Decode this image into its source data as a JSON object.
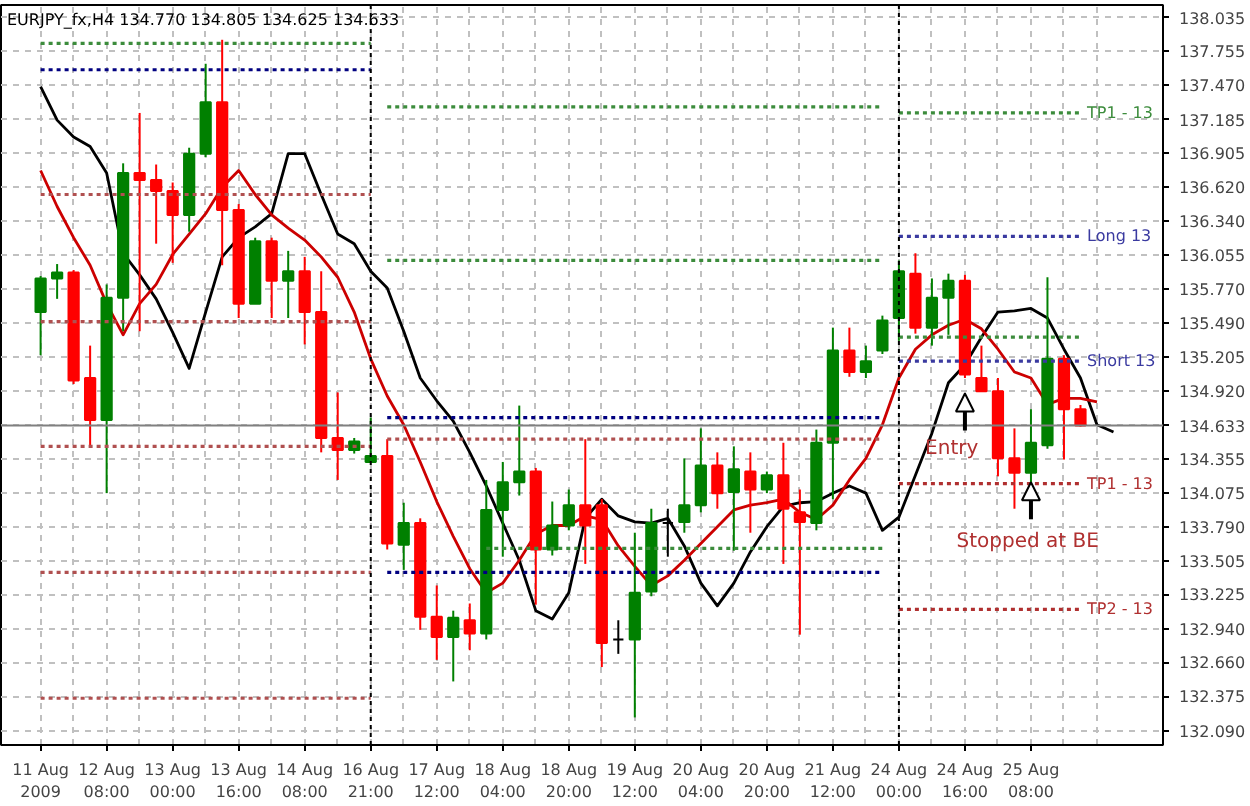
{
  "chart_data": {
    "type": "candlestick",
    "title": "EURJPY_fx,H4 134.770 134.805 134.625 134.633",
    "categories": [
      "11 Aug 2009",
      null,
      null,
      null,
      "12 Aug 08:00",
      null,
      null,
      null,
      "13 Aug 00:00",
      null,
      null,
      null,
      "13 Aug 16:00",
      null,
      null,
      null,
      "14 Aug 08:00",
      null,
      null,
      null,
      "16 Aug 21:00",
      null,
      null,
      null,
      "17 Aug 12:00",
      null,
      null,
      null,
      "18 Aug 04:00",
      null,
      null,
      null,
      "18 Aug 20:00",
      null,
      null,
      null,
      "19 Aug 12:00",
      null,
      null,
      null,
      "20 Aug 04:00",
      null,
      null,
      null,
      "20 Aug 20:00",
      null,
      null,
      null,
      "21 Aug 12:00",
      null,
      null,
      null,
      "24 Aug 00:00",
      null,
      null,
      null,
      "24 Aug 16:00",
      null,
      null,
      null,
      "25 Aug 08:00",
      null,
      null,
      null,
      null,
      null
    ],
    "ohlc": [
      [
        135.58,
        135.88,
        135.22,
        135.86
      ],
      [
        135.86,
        135.98,
        135.69,
        135.91
      ],
      [
        135.91,
        135.93,
        134.98,
        135.01
      ],
      [
        135.03,
        135.3,
        134.46,
        134.68
      ],
      [
        134.68,
        135.81,
        134.07,
        135.7
      ],
      [
        135.7,
        136.82,
        135.42,
        136.74
      ],
      [
        136.74,
        137.24,
        135.42,
        136.68
      ],
      [
        136.68,
        136.81,
        136.15,
        136.59
      ],
      [
        136.59,
        136.66,
        135.99,
        136.39
      ],
      [
        136.39,
        136.95,
        136.25,
        136.9
      ],
      [
        136.9,
        137.65,
        136.87,
        137.33
      ],
      [
        137.33,
        137.85,
        135.97,
        136.43
      ],
      [
        136.43,
        136.48,
        135.53,
        135.65
      ],
      [
        135.65,
        136.2,
        135.65,
        136.17
      ],
      [
        136.17,
        136.2,
        135.53,
        135.84
      ],
      [
        135.84,
        136.09,
        135.53,
        135.92
      ],
      [
        135.92,
        136.04,
        135.31,
        135.58
      ],
      [
        135.58,
        135.92,
        134.41,
        134.53
      ],
      [
        134.53,
        134.91,
        134.18,
        134.43
      ],
      [
        134.43,
        134.53,
        134.4,
        134.5
      ],
      [
        134.33,
        134.7,
        134.33,
        134.38
      ],
      [
        134.38,
        134.52,
        133.6,
        133.65
      ],
      [
        133.64,
        133.99,
        133.43,
        133.82
      ],
      [
        133.82,
        133.86,
        132.93,
        133.04
      ],
      [
        133.04,
        133.3,
        132.68,
        132.87
      ],
      [
        132.87,
        133.09,
        132.5,
        133.03
      ],
      [
        133.01,
        133.15,
        132.76,
        132.9
      ],
      [
        132.9,
        134.18,
        132.85,
        133.93
      ],
      [
        133.93,
        134.33,
        133.54,
        134.16
      ],
      [
        134.16,
        134.8,
        134.05,
        134.25
      ],
      [
        134.25,
        134.28,
        133.14,
        133.6
      ],
      [
        133.6,
        134.0,
        133.55,
        133.8
      ],
      [
        133.8,
        134.1,
        133.76,
        133.97
      ],
      [
        133.97,
        134.52,
        133.48,
        133.8
      ],
      [
        133.97,
        134.02,
        132.62,
        132.82
      ],
      [
        132.85,
        133.01,
        132.73,
        132.85
      ],
      [
        132.85,
        133.74,
        132.2,
        133.24
      ],
      [
        133.25,
        133.94,
        133.21,
        133.82
      ],
      [
        133.82,
        133.94,
        133.54,
        133.82
      ],
      [
        133.83,
        134.36,
        133.74,
        133.97
      ],
      [
        133.97,
        134.61,
        133.91,
        134.3
      ],
      [
        134.3,
        134.41,
        133.94,
        134.07
      ],
      [
        134.08,
        134.46,
        133.59,
        134.27
      ],
      [
        134.25,
        134.41,
        133.74,
        134.1
      ],
      [
        134.1,
        134.25,
        134.07,
        134.22
      ],
      [
        134.22,
        134.49,
        133.48,
        133.94
      ],
      [
        133.91,
        134.1,
        132.89,
        133.83
      ],
      [
        133.82,
        134.6,
        133.76,
        134.49
      ],
      [
        134.49,
        135.45,
        134.02,
        135.26
      ],
      [
        135.26,
        135.45,
        135.04,
        135.08
      ],
      [
        135.08,
        135.3,
        135.03,
        135.17
      ],
      [
        135.26,
        135.55,
        135.23,
        135.51
      ],
      [
        135.53,
        136.01,
        135.34,
        135.92
      ],
      [
        135.9,
        136.07,
        135.4,
        135.45
      ],
      [
        135.45,
        135.86,
        135.3,
        135.7
      ],
      [
        135.7,
        135.9,
        135.39,
        135.84
      ],
      [
        135.84,
        135.89,
        135.03,
        135.06
      ],
      [
        135.03,
        135.3,
        134.92,
        134.92
      ],
      [
        134.92,
        135.03,
        134.21,
        134.36
      ],
      [
        134.36,
        134.61,
        133.94,
        134.24
      ],
      [
        134.24,
        134.77,
        134.13,
        134.49
      ],
      [
        134.47,
        135.87,
        134.44,
        135.19
      ],
      [
        135.19,
        135.22,
        134.35,
        134.77
      ],
      [
        134.77,
        134.805,
        134.625,
        134.633
      ],
      null,
      null
    ],
    "colors": [
      "#008000",
      "#008000",
      "#ff0000",
      "#ff0000",
      "#008000",
      "#008000",
      "#ff0000",
      "#ff0000",
      "#ff0000",
      "#008000",
      "#008000",
      "#ff0000",
      "#ff0000",
      "#008000",
      "#ff0000",
      "#008000",
      "#ff0000",
      "#ff0000",
      "#ff0000",
      "#008000",
      "#008000",
      "#ff0000",
      "#008000",
      "#ff0000",
      "#ff0000",
      "#008000",
      "#ff0000",
      "#008000",
      "#008000",
      "#008000",
      "#ff0000",
      "#008000",
      "#008000",
      "#ff0000",
      "#ff0000",
      "#000000",
      "#008000",
      "#008000",
      "#000000",
      "#008000",
      "#008000",
      "#ff0000",
      "#008000",
      "#ff0000",
      "#008000",
      "#ff0000",
      "#ff0000",
      "#008000",
      "#008000",
      "#ff0000",
      "#008000",
      "#008000",
      "#008000",
      "#ff0000",
      "#008000",
      "#008000",
      "#ff0000",
      "#ff0000",
      "#ff0000",
      "#ff0000",
      "#008000",
      "#008000",
      "#ff0000",
      "#ff0000",
      null,
      null
    ],
    "series": [
      {
        "type": "line",
        "color": "#000000",
        "values": [
          137.46,
          137.18,
          137.04,
          136.96,
          136.74,
          136.07,
          135.89,
          135.69,
          135.41,
          135.11,
          135.58,
          136.04,
          136.2,
          136.29,
          136.4,
          136.9,
          136.9,
          136.56,
          136.23,
          136.15,
          135.92,
          135.78,
          135.42,
          135.03,
          134.84,
          134.67,
          134.41,
          134.13,
          133.82,
          133.51,
          133.09,
          133.02,
          133.24,
          133.86,
          134.02,
          133.88,
          133.83,
          133.82,
          133.86,
          133.63,
          133.32,
          133.13,
          133.32,
          133.58,
          133.79,
          133.96,
          133.99,
          134.0,
          134.07,
          134.13,
          134.07,
          133.76,
          133.87,
          134.22,
          134.57,
          134.99,
          135.14,
          135.37,
          135.58,
          135.59,
          135.61,
          135.53,
          135.27,
          135.03,
          134.64,
          134.58
        ]
      },
      {
        "type": "line",
        "color": "#cc0000",
        "values": [
          136.76,
          136.46,
          136.2,
          135.97,
          135.65,
          135.39,
          135.65,
          135.81,
          136.06,
          136.23,
          136.4,
          136.62,
          136.76,
          136.56,
          136.39,
          136.28,
          136.18,
          136.04,
          135.87,
          135.58,
          135.19,
          134.88,
          134.64,
          134.33,
          134.0,
          133.71,
          133.44,
          133.24,
          133.32,
          133.51,
          133.73,
          133.8,
          133.8,
          133.88,
          133.85,
          133.63,
          133.46,
          133.3,
          133.38,
          133.51,
          133.65,
          133.79,
          133.93,
          133.97,
          133.99,
          134.02,
          133.91,
          133.85,
          133.97,
          134.18,
          134.36,
          134.64,
          135.03,
          135.27,
          135.39,
          135.47,
          135.52,
          135.44,
          135.27,
          135.08,
          135.03,
          134.81,
          134.86,
          134.86,
          134.83,
          null
        ]
      },
      {
        "type": "line",
        "color": "#3c8c3c",
        "line_style": "dotted",
        "values": [
          137.82,
          137.82,
          137.82,
          137.82,
          137.82,
          137.82,
          137.82,
          137.82,
          137.82,
          137.82,
          137.82,
          137.82,
          137.82,
          137.82,
          137.82,
          137.82,
          137.82,
          137.82,
          137.82,
          137.82,
          137.82,
          null,
          null,
          null,
          null,
          null,
          null,
          null,
          null,
          null,
          null,
          null,
          null,
          null,
          null,
          null,
          null,
          null,
          null,
          null,
          null,
          null,
          null,
          null,
          null,
          null,
          null,
          null,
          null,
          null,
          null,
          null,
          null,
          null,
          null,
          null,
          null,
          null,
          null,
          null,
          null,
          null,
          null,
          null,
          null,
          null
        ]
      },
      {
        "type": "line",
        "color": "#000080",
        "line_style": "dotted",
        "values": [
          137.6,
          137.6,
          137.6,
          137.6,
          137.6,
          137.6,
          137.6,
          137.6,
          137.6,
          137.6,
          137.6,
          137.6,
          137.6,
          137.6,
          137.6,
          137.6,
          137.6,
          137.6,
          137.6,
          137.6,
          137.6,
          null,
          null,
          null,
          null,
          null,
          null,
          null,
          null,
          null,
          null,
          null,
          null,
          null,
          null,
          null,
          null,
          null,
          null,
          null,
          null,
          null,
          null,
          null,
          null,
          null,
          null,
          null,
          null,
          null,
          null,
          null,
          null,
          null,
          null,
          null,
          null,
          null,
          null,
          null,
          null,
          null,
          null,
          null,
          null,
          null
        ]
      },
      {
        "type": "line",
        "color": "#b05050",
        "line_style": "dotted",
        "values": [
          136.56,
          136.56,
          136.56,
          136.56,
          136.56,
          136.56,
          136.56,
          136.56,
          136.56,
          136.56,
          136.56,
          136.56,
          136.56,
          136.56,
          136.56,
          136.56,
          136.56,
          136.56,
          136.56,
          136.56,
          136.56,
          null,
          null,
          null,
          null,
          null,
          null,
          null,
          null,
          null,
          null,
          null,
          null,
          null,
          null,
          null,
          null,
          null,
          null,
          null,
          null,
          null,
          null,
          null,
          null,
          null,
          null,
          null,
          null,
          null,
          null,
          null,
          null,
          null,
          null,
          null,
          null,
          null,
          null,
          null,
          null,
          null,
          null,
          null,
          null,
          null
        ]
      },
      {
        "type": "line",
        "color": "#b05050",
        "line_style": "dotted",
        "values": [
          135.5,
          135.5,
          135.5,
          135.5,
          135.5,
          135.5,
          135.5,
          135.5,
          135.5,
          135.5,
          135.5,
          135.5,
          135.5,
          135.5,
          135.5,
          135.5,
          135.5,
          135.5,
          135.5,
          135.5,
          135.5,
          null,
          null,
          null,
          null,
          null,
          null,
          null,
          null,
          null,
          null,
          null,
          null,
          null,
          null,
          null,
          null,
          null,
          null,
          null,
          null,
          null,
          null,
          null,
          null,
          null,
          null,
          null,
          null,
          null,
          null,
          null,
          null,
          null,
          null,
          null,
          null,
          null,
          null,
          null,
          null,
          null,
          null,
          null,
          null,
          null
        ]
      },
      {
        "type": "line",
        "color": "#b05050",
        "line_style": "dotted",
        "values": [
          134.46,
          134.46,
          134.46,
          134.46,
          134.46,
          134.46,
          134.46,
          134.46,
          134.46,
          134.46,
          134.46,
          134.46,
          134.46,
          134.46,
          134.46,
          134.46,
          134.46,
          134.46,
          134.46,
          134.46,
          134.46,
          null,
          null,
          null,
          null,
          null,
          null,
          null,
          null,
          null,
          null,
          null,
          null,
          null,
          null,
          null,
          null,
          null,
          null,
          null,
          null,
          null,
          null,
          null,
          null,
          null,
          null,
          null,
          null,
          null,
          null,
          null,
          null,
          null,
          null,
          null,
          null,
          null,
          null,
          null,
          null,
          null,
          null,
          null,
          null,
          null
        ]
      },
      {
        "type": "line",
        "color": "#b05050",
        "line_style": "dotted",
        "values": [
          133.41,
          133.41,
          133.41,
          133.41,
          133.41,
          133.41,
          133.41,
          133.41,
          133.41,
          133.41,
          133.41,
          133.41,
          133.41,
          133.41,
          133.41,
          133.41,
          133.41,
          133.41,
          133.41,
          133.41,
          133.41,
          null,
          null,
          null,
          null,
          null,
          null,
          null,
          null,
          null,
          null,
          null,
          null,
          null,
          null,
          null,
          null,
          null,
          null,
          null,
          null,
          null,
          null,
          null,
          null,
          null,
          null,
          null,
          null,
          null,
          null,
          null,
          null,
          null,
          null,
          null,
          null,
          null,
          null,
          null,
          null,
          null,
          null,
          null,
          null,
          null
        ]
      },
      {
        "type": "line",
        "color": "#b05050",
        "line_style": "dotted",
        "values": [
          132.36,
          132.36,
          132.36,
          132.36,
          132.36,
          132.36,
          132.36,
          132.36,
          132.36,
          132.36,
          132.36,
          132.36,
          132.36,
          132.36,
          132.36,
          132.36,
          132.36,
          132.36,
          132.36,
          132.36,
          132.36,
          null,
          null,
          null,
          null,
          null,
          null,
          null,
          null,
          null,
          null,
          null,
          null,
          null,
          null,
          null,
          null,
          null,
          null,
          null,
          null,
          null,
          null,
          null,
          null,
          null,
          null,
          null,
          null,
          null,
          null,
          null,
          null,
          null,
          null,
          null,
          null,
          null,
          null,
          null,
          null,
          null,
          null,
          null,
          null,
          null
        ]
      },
      {
        "type": "line",
        "color": "#3c8c3c",
        "line_style": "dotted",
        "values": [
          null,
          null,
          null,
          null,
          null,
          null,
          null,
          null,
          null,
          null,
          null,
          null,
          null,
          null,
          null,
          null,
          null,
          null,
          null,
          null,
          null,
          137.29,
          137.29,
          137.29,
          137.29,
          137.29,
          137.29,
          137.29,
          137.29,
          137.29,
          137.29,
          137.29,
          137.29,
          137.29,
          137.29,
          137.29,
          137.29,
          137.29,
          137.29,
          137.29,
          137.29,
          137.29,
          137.29,
          137.29,
          137.29,
          137.29,
          137.29,
          137.29,
          137.29,
          137.29,
          137.29,
          137.29,
          null,
          null,
          null,
          null,
          null,
          null,
          null,
          null,
          null,
          null,
          null,
          null,
          null,
          null
        ]
      },
      {
        "type": "line",
        "color": "#3c8c3c",
        "line_style": "dotted",
        "values": [
          null,
          null,
          null,
          null,
          null,
          null,
          null,
          null,
          null,
          null,
          null,
          null,
          null,
          null,
          null,
          null,
          null,
          null,
          null,
          null,
          null,
          136.01,
          136.01,
          136.01,
          136.01,
          136.01,
          136.01,
          136.01,
          136.01,
          136.01,
          136.01,
          136.01,
          136.01,
          136.01,
          136.01,
          136.01,
          136.01,
          136.01,
          136.01,
          136.01,
          136.01,
          136.01,
          136.01,
          136.01,
          136.01,
          136.01,
          136.01,
          136.01,
          136.01,
          136.01,
          136.01,
          136.01,
          null,
          null,
          null,
          null,
          null,
          null,
          null,
          null,
          null,
          null,
          null,
          null,
          null,
          null
        ]
      },
      {
        "type": "line",
        "color": "#000080",
        "line_style": "dotted",
        "values": [
          null,
          null,
          null,
          null,
          null,
          null,
          null,
          null,
          null,
          null,
          null,
          null,
          null,
          null,
          null,
          null,
          null,
          null,
          null,
          null,
          null,
          134.7,
          134.7,
          134.7,
          134.7,
          134.7,
          134.7,
          134.7,
          134.7,
          134.7,
          134.7,
          134.7,
          134.7,
          134.7,
          134.7,
          134.7,
          134.7,
          134.7,
          134.7,
          134.7,
          134.7,
          134.7,
          134.7,
          134.7,
          134.7,
          134.7,
          134.7,
          134.7,
          134.7,
          134.7,
          134.7,
          134.7,
          null,
          null,
          null,
          null,
          null,
          null,
          null,
          null,
          null,
          null,
          null,
          null,
          null,
          null
        ]
      },
      {
        "type": "line",
        "color": "#b05050",
        "line_style": "dotted",
        "values": [
          null,
          null,
          null,
          null,
          null,
          null,
          null,
          null,
          null,
          null,
          null,
          null,
          null,
          null,
          null,
          null,
          null,
          null,
          null,
          null,
          null,
          134.52,
          134.52,
          134.52,
          134.52,
          134.52,
          134.52,
          134.52,
          134.52,
          134.52,
          134.52,
          134.52,
          134.52,
          134.52,
          134.52,
          134.52,
          134.52,
          134.52,
          134.52,
          134.52,
          134.52,
          134.52,
          134.52,
          134.52,
          134.52,
          134.52,
          134.52,
          134.52,
          134.52,
          134.52,
          134.52,
          134.52,
          null,
          null,
          null,
          null,
          null,
          null,
          null,
          null,
          null,
          null,
          null,
          null,
          null,
          null
        ]
      },
      {
        "type": "line",
        "color": "#3c8c3c",
        "line_style": "dotted",
        "values": [
          null,
          null,
          null,
          null,
          null,
          null,
          null,
          null,
          null,
          null,
          null,
          null,
          null,
          null,
          null,
          null,
          null,
          null,
          null,
          null,
          null,
          null,
          null,
          null,
          null,
          null,
          null,
          133.61,
          133.61,
          133.61,
          133.61,
          133.61,
          133.61,
          133.61,
          133.61,
          133.61,
          133.61,
          133.61,
          133.61,
          133.61,
          133.61,
          133.61,
          133.61,
          133.61,
          133.61,
          133.61,
          133.61,
          133.61,
          133.61,
          133.61,
          133.61,
          133.61,
          null,
          null,
          null,
          null,
          null,
          null,
          null,
          null,
          null,
          null,
          null,
          null,
          null,
          null
        ]
      },
      {
        "type": "line",
        "color": "#000080",
        "line_style": "dotted",
        "values": [
          null,
          null,
          null,
          null,
          null,
          null,
          null,
          null,
          null,
          null,
          null,
          null,
          null,
          null,
          null,
          null,
          null,
          null,
          null,
          null,
          null,
          133.41,
          133.41,
          133.41,
          133.41,
          133.41,
          133.41,
          133.41,
          133.41,
          133.41,
          133.41,
          133.41,
          133.41,
          133.41,
          133.41,
          133.41,
          133.41,
          133.41,
          133.41,
          133.41,
          133.41,
          133.41,
          133.41,
          133.41,
          133.41,
          133.41,
          133.41,
          133.41,
          133.41,
          133.41,
          133.41,
          133.41,
          null,
          null,
          null,
          null,
          null,
          null,
          null,
          null,
          null,
          null,
          null,
          null,
          null,
          null
        ]
      },
      {
        "type": "line",
        "name": "TP1 - 13",
        "color": "#3c8c3c",
        "line_style": "dotted",
        "values": [
          null,
          null,
          null,
          null,
          null,
          null,
          null,
          null,
          null,
          null,
          null,
          null,
          null,
          null,
          null,
          null,
          null,
          null,
          null,
          null,
          null,
          null,
          null,
          null,
          null,
          null,
          null,
          null,
          null,
          null,
          null,
          null,
          null,
          null,
          null,
          null,
          null,
          null,
          null,
          null,
          null,
          null,
          null,
          null,
          null,
          null,
          null,
          null,
          null,
          null,
          null,
          null,
          137.24,
          137.24,
          137.24,
          137.24,
          137.24,
          137.24,
          137.24,
          137.24,
          137.24,
          137.24,
          137.24,
          137.24,
          null,
          null
        ]
      },
      {
        "type": "line",
        "name": "Long 13",
        "color": "#3a3aa0",
        "line_style": "dotted",
        "values": [
          null,
          null,
          null,
          null,
          null,
          null,
          null,
          null,
          null,
          null,
          null,
          null,
          null,
          null,
          null,
          null,
          null,
          null,
          null,
          null,
          null,
          null,
          null,
          null,
          null,
          null,
          null,
          null,
          null,
          null,
          null,
          null,
          null,
          null,
          null,
          null,
          null,
          null,
          null,
          null,
          null,
          null,
          null,
          null,
          null,
          null,
          null,
          null,
          null,
          null,
          null,
          null,
          136.21,
          136.21,
          136.21,
          136.21,
          136.21,
          136.21,
          136.21,
          136.21,
          136.21,
          136.21,
          136.21,
          136.21,
          null,
          null
        ]
      },
      {
        "type": "line",
        "color": "#3c8c3c",
        "line_style": "dotted",
        "values": [
          null,
          null,
          null,
          null,
          null,
          null,
          null,
          null,
          null,
          null,
          null,
          null,
          null,
          null,
          null,
          null,
          null,
          null,
          null,
          null,
          null,
          null,
          null,
          null,
          null,
          null,
          null,
          null,
          null,
          null,
          null,
          null,
          null,
          null,
          null,
          null,
          null,
          null,
          null,
          null,
          null,
          null,
          null,
          null,
          null,
          null,
          null,
          null,
          null,
          null,
          null,
          null,
          135.37,
          135.37,
          135.37,
          135.37,
          135.37,
          135.37,
          135.37,
          135.37,
          135.37,
          135.37,
          135.37,
          135.37,
          null,
          null
        ]
      },
      {
        "type": "line",
        "name": "Short 13",
        "color": "#3a3aa0",
        "line_style": "dotted",
        "values": [
          null,
          null,
          null,
          null,
          null,
          null,
          null,
          null,
          null,
          null,
          null,
          null,
          null,
          null,
          null,
          null,
          null,
          null,
          null,
          null,
          null,
          null,
          null,
          null,
          null,
          null,
          null,
          null,
          null,
          null,
          null,
          null,
          null,
          null,
          null,
          null,
          null,
          null,
          null,
          null,
          null,
          null,
          null,
          null,
          null,
          null,
          null,
          null,
          null,
          null,
          null,
          null,
          135.17,
          135.17,
          135.17,
          135.17,
          135.17,
          135.17,
          135.17,
          135.17,
          135.17,
          135.17,
          135.17,
          135.17,
          null,
          null
        ]
      },
      {
        "type": "line",
        "name": "TP1 - 13",
        "color": "#b03030",
        "line_style": "dotted",
        "values": [
          null,
          null,
          null,
          null,
          null,
          null,
          null,
          null,
          null,
          null,
          null,
          null,
          null,
          null,
          null,
          null,
          null,
          null,
          null,
          null,
          null,
          null,
          null,
          null,
          null,
          null,
          null,
          null,
          null,
          null,
          null,
          null,
          null,
          null,
          null,
          null,
          null,
          null,
          null,
          null,
          null,
          null,
          null,
          null,
          null,
          null,
          null,
          null,
          null,
          null,
          null,
          null,
          134.15,
          134.15,
          134.15,
          134.15,
          134.15,
          134.15,
          134.15,
          134.15,
          134.15,
          134.15,
          134.15,
          134.15,
          null,
          null
        ]
      },
      {
        "type": "line",
        "name": "TP2 - 13",
        "color": "#b03030",
        "line_style": "dotted",
        "values": [
          null,
          null,
          null,
          null,
          null,
          null,
          null,
          null,
          null,
          null,
          null,
          null,
          null,
          null,
          null,
          null,
          null,
          null,
          null,
          null,
          null,
          null,
          null,
          null,
          null,
          null,
          null,
          null,
          null,
          null,
          null,
          null,
          null,
          null,
          null,
          null,
          null,
          null,
          null,
          null,
          null,
          null,
          null,
          null,
          null,
          null,
          null,
          null,
          null,
          null,
          null,
          null,
          133.1,
          133.1,
          133.1,
          133.1,
          133.1,
          133.1,
          133.1,
          133.1,
          133.1,
          133.1,
          133.1,
          133.1,
          null,
          null
        ]
      }
    ],
    "ref_lines": [
      {
        "axis": "x",
        "value": "16 Aug 21:00",
        "color": "#000000",
        "line_style": "dotted"
      },
      {
        "axis": "x",
        "value": "24 Aug 00:00",
        "color": "#000000",
        "line_style": "dotted"
      },
      {
        "axis": "y",
        "value": 134.633,
        "label": "134.633",
        "color": "#808080",
        "line_style": "solid"
      }
    ],
    "annotations": [
      "Entry",
      "Stopped at BE"
    ],
    "ylim": [
      131.97,
      138.14
    ],
    "yticks": [
      {
        "value": 138.035,
        "label": "138.035"
      },
      {
        "value": 137.755,
        "label": "137.755"
      },
      {
        "value": 137.47,
        "label": "137.470"
      },
      {
        "value": 137.185,
        "label": "137.185"
      },
      {
        "value": 136.905,
        "label": "136.905"
      },
      {
        "value": 136.62,
        "label": "136.620"
      },
      {
        "value": 136.34,
        "label": "136.340"
      },
      {
        "value": 136.055,
        "label": "136.055"
      },
      {
        "value": 135.77,
        "label": "135.770"
      },
      {
        "value": 135.49,
        "label": "135.490"
      },
      {
        "value": 135.205,
        "label": "135.205"
      },
      {
        "value": 134.92,
        "label": "134.920"
      },
      {
        "value": 134.635,
        "label": null
      },
      {
        "value": 134.355,
        "label": "134.355"
      },
      {
        "value": 134.075,
        "label": "134.075"
      },
      {
        "value": 133.79,
        "label": "133.790"
      },
      {
        "value": 133.505,
        "label": "133.505"
      },
      {
        "value": 133.225,
        "label": "133.225"
      },
      {
        "value": 132.94,
        "label": "132.940"
      },
      {
        "value": 132.66,
        "label": "132.660"
      },
      {
        "value": 132.375,
        "label": "132.375"
      },
      {
        "value": 132.09,
        "label": "132.090"
      }
    ],
    "grid": true
  }
}
